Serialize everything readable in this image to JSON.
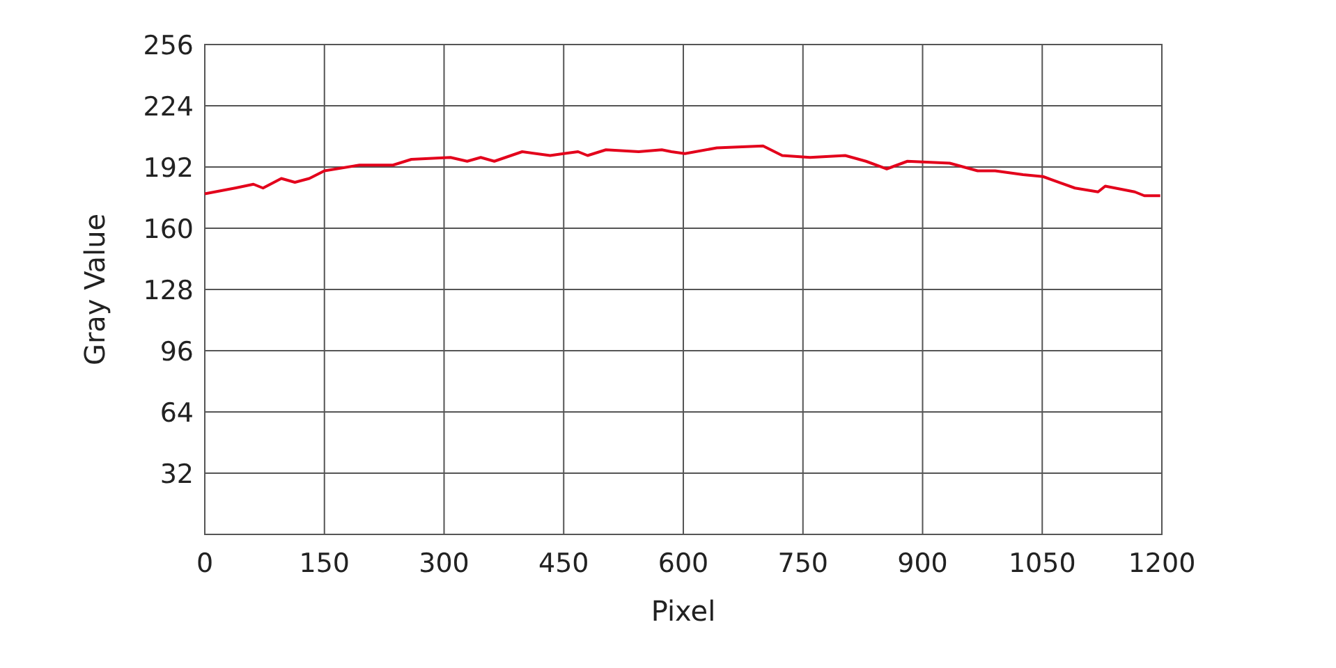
{
  "chart_data": {
    "type": "line",
    "xlabel": "Pixel",
    "ylabel": "Gray Value",
    "x": [
      0,
      38,
      61,
      73,
      96,
      113,
      131,
      150,
      194,
      236,
      259,
      308,
      329,
      346,
      363,
      398,
      433,
      450,
      468,
      480,
      503,
      544,
      573,
      585,
      602,
      642,
      700,
      724,
      759,
      803,
      829,
      855,
      881,
      934,
      969,
      991,
      1026,
      1051,
      1091,
      1120,
      1129,
      1166,
      1178,
      1198
    ],
    "series": [
      {
        "color": "#e3001b",
        "values": [
          178,
          181,
          183,
          181,
          186,
          184,
          186,
          190,
          193,
          193,
          196,
          197,
          195,
          197,
          195,
          200,
          198,
          199,
          200,
          198,
          201,
          200,
          201,
          200,
          199,
          202,
          203,
          198,
          197,
          198,
          195,
          191,
          195,
          194,
          190,
          190,
          188,
          187,
          181,
          179,
          182,
          179,
          177,
          177
        ]
      }
    ],
    "xlim": [
      0,
      1200
    ],
    "xticks": [
      0,
      150,
      300,
      450,
      600,
      750,
      900,
      1050,
      1200
    ],
    "ylim": [
      0,
      256
    ],
    "yticks": [
      32,
      64,
      96,
      128,
      160,
      192,
      224,
      256
    ],
    "grid": true,
    "marker": "none",
    "line_style": "solid"
  }
}
